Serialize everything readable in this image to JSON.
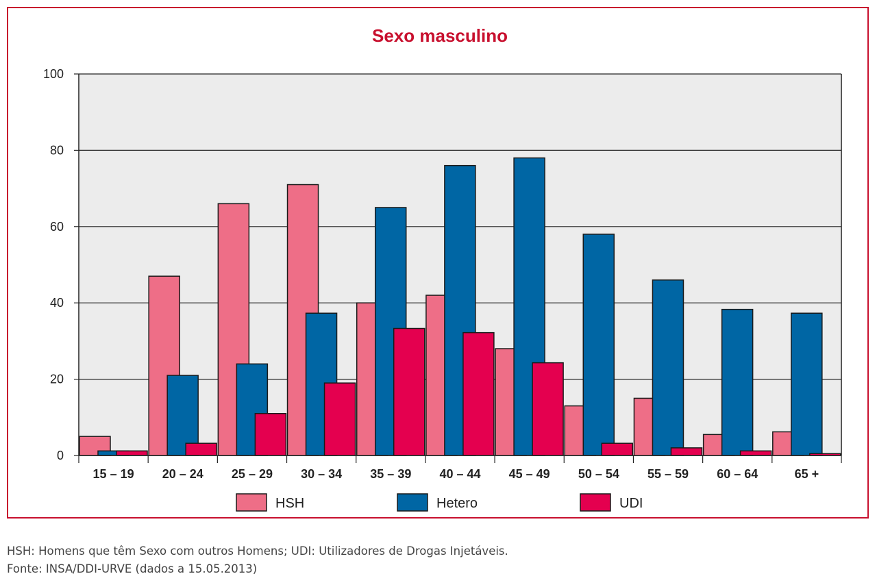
{
  "chart_data": {
    "type": "bar",
    "title": "Sexo masculino",
    "categories": [
      "15 – 19",
      "20 – 24",
      "25 – 29",
      "30 – 34",
      "35 – 39",
      "40 – 44",
      "45 – 49",
      "50 – 54",
      "55 – 59",
      "60 – 64",
      "65 +"
    ],
    "series": [
      {
        "name": "HSH",
        "color": "#ee6e87",
        "values": [
          5,
          47,
          66,
          71,
          40,
          42,
          28,
          13,
          15,
          5.5,
          6.2
        ]
      },
      {
        "name": "Hetero",
        "color": "#0066a4",
        "values": [
          1.2,
          21,
          24,
          37.3,
          65,
          76,
          78,
          58,
          46,
          38.3,
          37.3
        ]
      },
      {
        "name": "UDI",
        "color": "#e4004f",
        "values": [
          1.2,
          3.2,
          11,
          19,
          33.3,
          32.2,
          24.3,
          3.2,
          2,
          1.2,
          0.5
        ]
      }
    ],
    "ylim": [
      0,
      100
    ],
    "yticks": [
      "0",
      "20",
      "40",
      "60",
      "80",
      "100"
    ],
    "grid": true,
    "legend_position": "bottom"
  },
  "footnotes": {
    "line1": "HSH: Homens que têm Sexo com outros Homens; UDI: Utilizadores de Drogas Injetáveis.",
    "line2": "Fonte: INSA/DDI-URVE (dados a 15.05.2013)"
  }
}
